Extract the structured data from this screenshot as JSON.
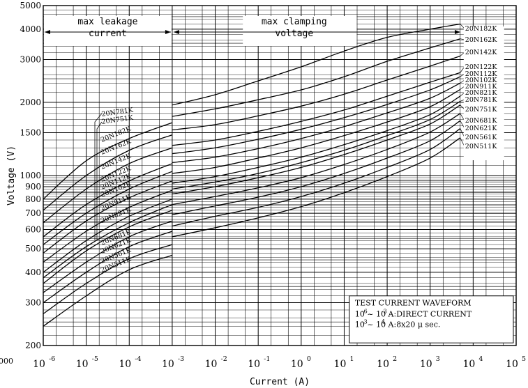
{
  "chart_data": {
    "type": "line",
    "xlabel": "Current (A)",
    "ylabel": "Voltage (V)",
    "x_scale": "log",
    "y_scale": "log",
    "xlim": [
      1e-06,
      100000.0
    ],
    "ylim": [
      200,
      5000
    ],
    "x_tick_values": [
      1e-06,
      1e-05,
      0.0001,
      0.001,
      0.01,
      0.1,
      1,
      10,
      100,
      1000,
      10000,
      100000
    ],
    "x_tick_bases": [
      "10",
      "10",
      "10",
      "10",
      "10",
      "10",
      "10",
      "10",
      "10",
      "10",
      "10",
      "10"
    ],
    "x_tick_exps": [
      "-6",
      "-5",
      "-4",
      "-3",
      "-2",
      "-1",
      "0",
      "1",
      "2",
      "3",
      "4",
      "5"
    ],
    "y_tick_values": [
      200,
      300,
      400,
      500,
      600,
      700,
      800,
      900,
      1000,
      1500,
      2000,
      3000,
      4000,
      5000
    ],
    "y_tick_labels": [
      "200",
      "300",
      "400",
      "500",
      "600",
      "700",
      "800",
      "900",
      "1000",
      "1500",
      "2000",
      "3000",
      "4000",
      "5000"
    ],
    "stray_label": "000",
    "grid": true,
    "regions": {
      "leakage": "max leakage\ncurrent",
      "clamping": "max clamping\nvoltage"
    },
    "waveform_box": {
      "title": "TEST CURRENT WAVEFORM",
      "line1": "10  ~ 10   A:DIRECT CURRENT",
      "line1_sup": [
        "-6",
        "-3"
      ],
      "line2": "10  ~ 10  A:8x20 μ sec.",
      "line2_sup": [
        "-3",
        "4"
      ]
    },
    "series": [
      {
        "name": "20N182K",
        "leak_x": [
          1e-06,
          1e-05,
          0.0001,
          0.001
        ],
        "leak_y": [
          800,
          1150,
          1420,
          1650
        ],
        "clamp_x": [
          0.001,
          0.01,
          0.1,
          1,
          10,
          100,
          1000,
          5000
        ],
        "clamp_y": [
          1950,
          2150,
          2450,
          2800,
          3250,
          3700,
          4000,
          4200
        ]
      },
      {
        "name": "20N162K",
        "leak_x": [
          1e-06,
          1e-05,
          0.0001,
          0.001
        ],
        "leak_y": [
          720,
          1000,
          1270,
          1470
        ],
        "clamp_x": [
          0.001,
          0.01,
          0.1,
          1,
          10,
          100,
          1000,
          5000
        ],
        "clamp_y": [
          1750,
          1880,
          2050,
          2250,
          2550,
          2950,
          3350,
          3650
        ]
      },
      {
        "name": "20N142K",
        "leak_x": [
          1e-06,
          1e-05,
          0.0001,
          0.001
        ],
        "leak_y": [
          640,
          880,
          1120,
          1300
        ],
        "clamp_x": [
          0.001,
          0.01,
          0.1,
          1,
          10,
          100,
          1000,
          5000
        ],
        "clamp_y": [
          1540,
          1620,
          1760,
          1930,
          2160,
          2470,
          2820,
          3100
        ]
      },
      {
        "name": "20N122K",
        "leak_x": [
          1e-06,
          1e-05,
          0.0001,
          0.001
        ],
        "leak_y": [
          560,
          760,
          950,
          1120
        ],
        "clamp_x": [
          0.001,
          0.01,
          0.1,
          1,
          10,
          100,
          1000,
          5000
        ],
        "clamp_y": [
          1330,
          1400,
          1520,
          1670,
          1860,
          2120,
          2420,
          2650
        ]
      },
      {
        "name": "20N112K",
        "leak_x": [
          1e-06,
          1e-05,
          0.0001,
          0.001
        ],
        "leak_y": [
          520,
          700,
          880,
          1040
        ],
        "clamp_x": [
          0.001,
          0.01,
          0.1,
          1,
          10,
          100,
          1000,
          5000
        ],
        "clamp_y": [
          1230,
          1300,
          1410,
          1550,
          1730,
          1960,
          2250,
          2550
        ]
      },
      {
        "name": "20N102K",
        "leak_x": [
          1e-06,
          1e-05,
          0.0001,
          0.001
        ],
        "leak_y": [
          480,
          650,
          810,
          950
        ],
        "clamp_x": [
          0.001,
          0.01,
          0.1,
          1,
          10,
          100,
          1000,
          5000
        ],
        "clamp_y": [
          1130,
          1190,
          1290,
          1420,
          1590,
          1810,
          2080,
          2400
        ]
      },
      {
        "name": "20N911K",
        "leak_x": [
          1e-06,
          1e-05,
          0.0001,
          0.001
        ],
        "leak_y": [
          440,
          590,
          740,
          870
        ],
        "clamp_x": [
          0.001,
          0.01,
          0.1,
          1,
          10,
          100,
          1000,
          5000
        ],
        "clamp_y": [
          1020,
          1080,
          1180,
          1300,
          1460,
          1660,
          1920,
          2260
        ]
      },
      {
        "name": "20N821K",
        "leak_x": [
          1e-06,
          1e-05,
          0.0001,
          0.001
        ],
        "leak_y": [
          400,
          540,
          680,
          800
        ],
        "clamp_x": [
          0.001,
          0.01,
          0.1,
          1,
          10,
          100,
          1000,
          5000
        ],
        "clamp_y": [
          930,
          990,
          1080,
          1190,
          1340,
          1530,
          1780,
          2120
        ]
      },
      {
        "name": "20N781K",
        "leak_x": [
          1e-06,
          1e-05,
          0.0001,
          0.001
        ],
        "leak_y": [
          380,
          510,
          640,
          760
        ],
        "clamp_x": [
          0.001,
          0.01,
          0.1,
          1,
          10,
          100,
          1000,
          5000
        ],
        "clamp_y": [
          880,
          940,
          1020,
          1130,
          1270,
          1460,
          1700,
          2020
        ]
      },
      {
        "name": "20N751K",
        "leak_x": [
          1e-06,
          1e-05,
          0.0001,
          0.001
        ],
        "leak_y": [
          360,
          490,
          615,
          720
        ],
        "clamp_x": [
          0.001,
          0.01,
          0.1,
          1,
          10,
          100,
          1000,
          5000
        ],
        "clamp_y": [
          840,
          900,
          980,
          1080,
          1220,
          1400,
          1630,
          1950
        ]
      },
      {
        "name": "20N681K",
        "leak_x": [
          1e-06,
          1e-05,
          0.0001,
          0.001
        ],
        "leak_y": [
          330,
          440,
          560,
          650
        ],
        "clamp_x": [
          0.001,
          0.01,
          0.1,
          1,
          10,
          100,
          1000,
          5000
        ],
        "clamp_y": [
          760,
          820,
          890,
          980,
          1110,
          1280,
          1510,
          1800
        ]
      },
      {
        "name": "20N621K",
        "leak_x": [
          1e-06,
          1e-05,
          0.0001,
          0.001
        ],
        "leak_y": [
          300,
          400,
          510,
          590
        ],
        "clamp_x": [
          0.001,
          0.01,
          0.1,
          1,
          10,
          100,
          1000,
          5000
        ],
        "clamp_y": [
          690,
          750,
          815,
          900,
          1020,
          1180,
          1390,
          1680
        ]
      },
      {
        "name": "20N561K",
        "leak_x": [
          1e-06,
          1e-05,
          0.0001,
          0.001
        ],
        "leak_y": [
          270,
          360,
          455,
          520
        ],
        "clamp_x": [
          0.001,
          0.01,
          0.1,
          1,
          10,
          100,
          1000,
          5000
        ],
        "clamp_y": [
          620,
          680,
          740,
          820,
          930,
          1080,
          1280,
          1560
        ]
      },
      {
        "name": "20N511K",
        "leak_x": [
          1e-06,
          1e-05,
          0.0001,
          0.001
        ],
        "leak_y": [
          240,
          320,
          410,
          470
        ],
        "clamp_x": [
          0.001,
          0.01,
          0.1,
          1,
          10,
          100,
          1000,
          5000
        ],
        "clamp_y": [
          560,
          610,
          670,
          745,
          850,
          990,
          1180,
          1430
        ]
      }
    ],
    "left_labels": [
      "20N781K",
      "20N751K",
      "20N182K",
      "20N162K",
      "20N142K",
      "20N122K",
      "20N112K",
      "20N102K",
      "20N911K",
      "20N821K",
      "20N681K",
      "20N621K",
      "20N561K",
      "20N511K"
    ],
    "right_labels": [
      "20N182K",
      "20N162K",
      "20N142K",
      "20N122K",
      "20N112K",
      "20N102K",
      "20N911K",
      "20N821K",
      "20N781K",
      "20N751K",
      "20N681K",
      "20N621K",
      "20N561K",
      "20N511K"
    ]
  }
}
